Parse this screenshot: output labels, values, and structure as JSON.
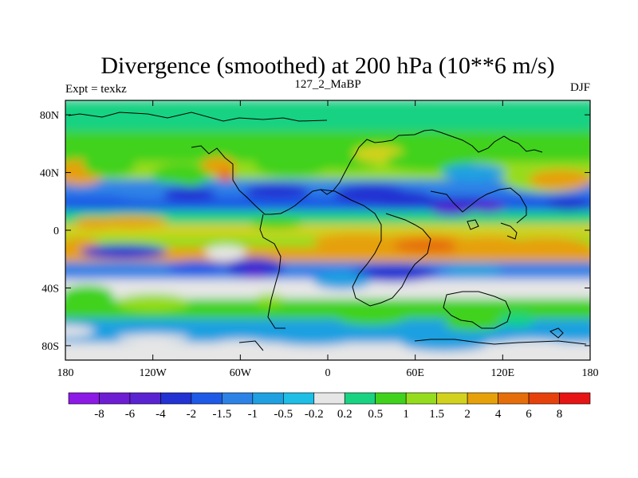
{
  "chart_data": {
    "type": "heatmap",
    "title": "Divergence (smoothed) at 200 hPa (10**6 m/s)",
    "left_label": "Expt = texkz",
    "center_label": "127_2_MaBP",
    "right_label": "DJF",
    "x_ticks": [
      "180",
      "120W",
      "60W",
      "0",
      "60E",
      "120E",
      "180"
    ],
    "x_tick_values": [
      -180,
      -120,
      -60,
      0,
      60,
      120,
      180
    ],
    "y_ticks": [
      "80N",
      "40N",
      "0",
      "40S",
      "80S"
    ],
    "y_tick_values": [
      80,
      40,
      0,
      -40,
      -80
    ],
    "xlim": [
      -180,
      180
    ],
    "ylim": [
      -90,
      90
    ],
    "colorbar": {
      "labels": [
        "-8",
        "-6",
        "-4",
        "-2",
        "-1.5",
        "-1",
        "-0.5",
        "-0.2",
        "0.2",
        "0.5",
        "1",
        "1.5",
        "2",
        "4",
        "6",
        "8"
      ],
      "levels": [
        -8,
        -6,
        -4,
        -2,
        -1.5,
        -1,
        -0.5,
        -0.2,
        0.2,
        0.5,
        1,
        1.5,
        2,
        4,
        6,
        8
      ],
      "colors": [
        "#8c19e6",
        "#6e1ed2",
        "#5a23d2",
        "#2332d2",
        "#1e5ae6",
        "#2d82e6",
        "#1ea0e1",
        "#1ebee6",
        "#e6e6e6",
        "#19d282",
        "#41d21e",
        "#96dc1e",
        "#d2d21e",
        "#e6a00a",
        "#e66e0a",
        "#e6410a",
        "#e61414"
      ]
    },
    "bands": [
      {
        "lat": 82,
        "value": 0.3
      },
      {
        "lat": 55,
        "value": 0.8
      },
      {
        "lat": 40,
        "value": 1.0
      },
      {
        "lat": 30,
        "value": -1.2
      },
      {
        "lat": 18,
        "value": -2.0
      },
      {
        "lat": 9,
        "value": 0.3
      },
      {
        "lat": 0,
        "value": 1.8
      },
      {
        "lat": -8,
        "value": 1.0
      },
      {
        "lat": -16,
        "value": 2.2
      },
      {
        "lat": -28,
        "value": -1.5
      },
      {
        "lat": -40,
        "value": 0.0
      },
      {
        "lat": -55,
        "value": 0.6
      },
      {
        "lat": -68,
        "value": -0.7
      },
      {
        "lat": -88,
        "value": 0.0
      }
    ]
  }
}
